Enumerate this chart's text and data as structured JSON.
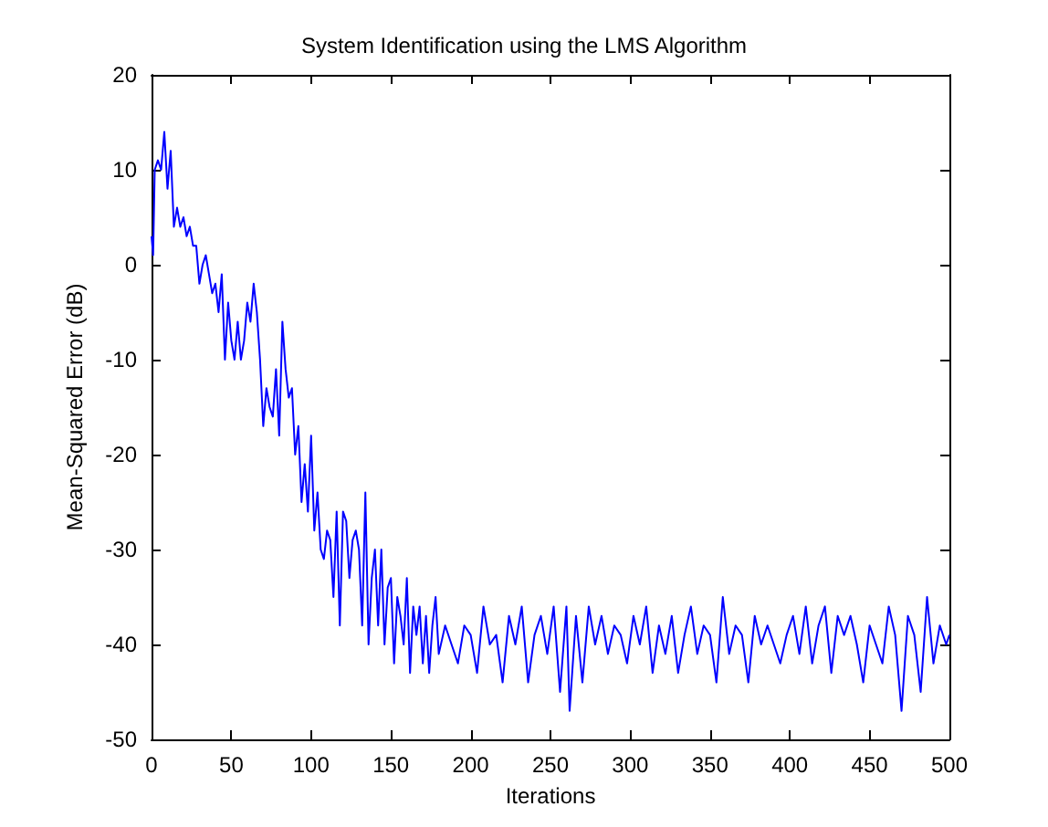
{
  "chart_data": {
    "type": "line",
    "title": "System Identification using the LMS Algorithm",
    "xlabel": "Iterations",
    "ylabel": "Mean-Squared Error (dB)",
    "xlim": [
      0,
      500
    ],
    "xticks": [
      0,
      50,
      100,
      150,
      200,
      250,
      300,
      350,
      400,
      450,
      500
    ],
    "ylim": [
      -50,
      20
    ],
    "yticks": [
      -50,
      -40,
      -30,
      -20,
      -10,
      0,
      10,
      20
    ],
    "grid": false,
    "series": [
      {
        "color": "#0000ff",
        "x": [
          0,
          1,
          2,
          4,
          6,
          8,
          10,
          12,
          14,
          16,
          18,
          20,
          22,
          24,
          26,
          28,
          30,
          32,
          34,
          36,
          38,
          40,
          42,
          44,
          46,
          48,
          50,
          52,
          54,
          56,
          58,
          60,
          62,
          64,
          66,
          68,
          70,
          72,
          74,
          76,
          78,
          80,
          82,
          84,
          86,
          88,
          90,
          92,
          94,
          96,
          98,
          100,
          102,
          104,
          106,
          108,
          110,
          112,
          114,
          116,
          118,
          120,
          122,
          124,
          126,
          128,
          130,
          132,
          134,
          136,
          138,
          140,
          142,
          144,
          146,
          148,
          150,
          152,
          154,
          156,
          158,
          160,
          162,
          164,
          166,
          168,
          170,
          172,
          174,
          176,
          178,
          180,
          184,
          188,
          192,
          196,
          200,
          204,
          208,
          212,
          216,
          220,
          224,
          228,
          232,
          236,
          240,
          244,
          248,
          252,
          256,
          260,
          262,
          266,
          270,
          274,
          278,
          282,
          286,
          290,
          294,
          298,
          302,
          306,
          310,
          314,
          318,
          322,
          326,
          330,
          334,
          338,
          342,
          346,
          350,
          354,
          358,
          362,
          366,
          370,
          374,
          378,
          382,
          386,
          390,
          394,
          398,
          402,
          406,
          410,
          414,
          418,
          422,
          426,
          430,
          434,
          438,
          442,
          446,
          450,
          454,
          458,
          462,
          466,
          470,
          474,
          478,
          482,
          486,
          490,
          494,
          498,
          500
        ],
        "values": [
          3,
          1,
          10,
          11,
          10,
          14,
          8,
          12,
          4,
          6,
          4,
          5,
          3,
          4,
          2,
          2,
          -2,
          0,
          1,
          -1,
          -3,
          -2,
          -5,
          -1,
          -10,
          -4,
          -8,
          -10,
          -6,
          -10,
          -8,
          -4,
          -6,
          -2,
          -5,
          -10,
          -17,
          -13,
          -15,
          -16,
          -11,
          -18,
          -6,
          -11,
          -14,
          -13,
          -20,
          -17,
          -25,
          -21,
          -26,
          -18,
          -28,
          -24,
          -30,
          -31,
          -28,
          -29,
          -35,
          -26,
          -38,
          -26,
          -27,
          -33,
          -29,
          -28,
          -30,
          -38,
          -24,
          -40,
          -33,
          -30,
          -38,
          -30,
          -40,
          -34,
          -33,
          -42,
          -35,
          -37,
          -40,
          -33,
          -43,
          -36,
          -39,
          -36,
          -42,
          -37,
          -43,
          -38,
          -35,
          -41,
          -38,
          -40,
          -42,
          -38,
          -39,
          -43,
          -36,
          -40,
          -39,
          -44,
          -37,
          -40,
          -36,
          -44,
          -39,
          -37,
          -41,
          -36,
          -45,
          -36,
          -47,
          -37,
          -44,
          -36,
          -40,
          -37,
          -41,
          -38,
          -39,
          -42,
          -37,
          -40,
          -36,
          -43,
          -38,
          -41,
          -37,
          -43,
          -39,
          -36,
          -41,
          -38,
          -39,
          -44,
          -35,
          -41,
          -38,
          -39,
          -44,
          -37,
          -40,
          -38,
          -40,
          -42,
          -39,
          -37,
          -41,
          -36,
          -42,
          -38,
          -36,
          -43,
          -37,
          -39,
          -37,
          -40,
          -44,
          -38,
          -40,
          -42,
          -36,
          -39,
          -47,
          -37,
          -39,
          -45,
          -35,
          -42,
          -38,
          -40,
          -39
        ]
      }
    ]
  }
}
